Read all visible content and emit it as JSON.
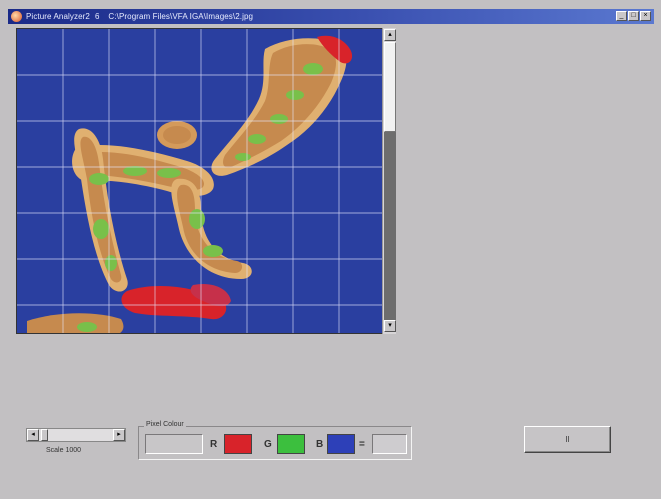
{
  "window": {
    "title": "Picture Analyzer2 ",
    "separator": "6",
    "path": "C:\\Program Files\\VFA IGA\\Images\\2.jpg",
    "controls": {
      "minimize": "_",
      "maximize": "□",
      "close": "×"
    }
  },
  "viewer": {
    "background_color": "#2a3fa0",
    "grid_color": "#e8e8ff",
    "figure_colors": {
      "body": "#c68a4e",
      "edge": "#e0b070",
      "hot": "#d8232a",
      "green": "#79c04a"
    }
  },
  "scale": {
    "label": "Scale 1000",
    "arrow_left": "◂",
    "arrow_right": "▸"
  },
  "pixel_colour": {
    "title": "Pixel Colour",
    "value": "",
    "channels": [
      {
        "label": "R",
        "color": "#d8232a"
      },
      {
        "label": "G",
        "color": "#3cbf3e"
      },
      {
        "label": "B",
        "color": "#2d40b8"
      }
    ],
    "equals": "=",
    "result": ""
  },
  "action_button": {
    "label": "ll"
  },
  "scroll": {
    "up": "▴",
    "down": "▾"
  }
}
